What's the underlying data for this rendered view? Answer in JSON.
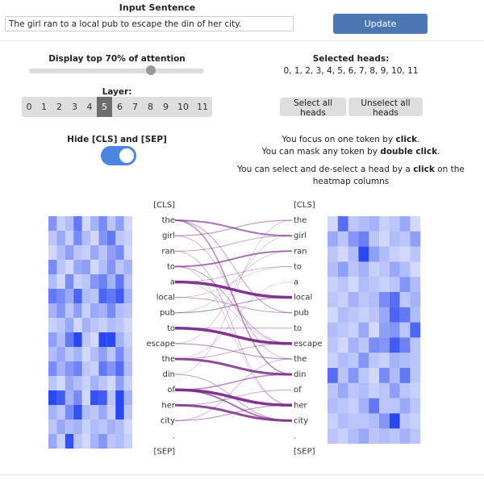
{
  "input": {
    "title": "Input Sentence",
    "value": "The girl ran to a local pub to escape the din of her city.",
    "update_label": "Update"
  },
  "attention": {
    "label": "Display top 70% of attention",
    "top_percent": 70
  },
  "selected_heads": {
    "label": "Selected heads:",
    "list": "0, 1, 2, 3, 4, 5, 6, 7, 8, 9, 10, 11"
  },
  "layer": {
    "label": "Layer:",
    "options": [
      "0",
      "1",
      "2",
      "3",
      "4",
      "5",
      "6",
      "7",
      "8",
      "9",
      "10",
      "11"
    ],
    "selected": 5
  },
  "buttons": {
    "select_all": "Select all heads",
    "unselect_all": "Unselect all heads"
  },
  "hide_special": {
    "label": "Hide [CLS] and [SEP]",
    "enabled": true
  },
  "instructions": {
    "line1_pre": "You focus on one token by ",
    "line1_bold": "click",
    "line1_post": ".",
    "line2_pre": "You can mask any token by ",
    "line2_bold": "double click",
    "line2_post": ".",
    "line3_pre": "You can select and de-select a head by a ",
    "line3_bold": "click",
    "line3_post": " on the heatmap columns"
  },
  "tokens": [
    "[CLS]",
    "the",
    "girl",
    "ran",
    "to",
    "a",
    "local",
    "pub",
    "to",
    "escape",
    "the",
    "din",
    "of",
    "her",
    "city",
    ".",
    "[SEP]"
  ],
  "colors": {
    "accent": "#4a78b5",
    "edge": "#7b2a8a",
    "heat": "#1f3ef0"
  },
  "heatmap_left": [
    [
      0.55,
      0.25,
      0.35,
      0.7,
      0.2,
      0.4,
      0.6,
      0.3,
      0.5,
      0.2
    ],
    [
      0.3,
      0.45,
      0.25,
      0.6,
      0.35,
      0.2,
      0.55,
      0.7,
      0.3,
      0.25
    ],
    [
      0.2,
      0.35,
      0.5,
      0.3,
      0.25,
      0.45,
      0.3,
      0.5,
      0.6,
      0.2
    ],
    [
      0.6,
      0.3,
      0.2,
      0.45,
      0.5,
      0.2,
      0.35,
      0.55,
      0.3,
      0.4
    ],
    [
      0.35,
      0.2,
      0.6,
      0.25,
      0.3,
      0.55,
      0.65,
      0.4,
      0.7,
      0.3
    ],
    [
      0.7,
      0.6,
      0.45,
      0.8,
      0.35,
      0.3,
      0.8,
      0.7,
      0.85,
      0.4
    ],
    [
      0.4,
      0.55,
      0.3,
      0.5,
      0.25,
      0.45,
      0.4,
      0.6,
      0.35,
      0.3
    ],
    [
      0.25,
      0.3,
      0.45,
      0.2,
      0.4,
      0.3,
      0.25,
      0.35,
      0.3,
      0.2
    ],
    [
      0.5,
      0.35,
      0.7,
      0.95,
      0.3,
      0.2,
      0.95,
      0.95,
      0.4,
      0.25
    ],
    [
      0.35,
      0.45,
      0.3,
      0.4,
      0.2,
      0.35,
      0.5,
      0.3,
      0.6,
      0.3
    ],
    [
      0.6,
      0.4,
      0.55,
      0.65,
      0.3,
      0.25,
      0.7,
      0.55,
      0.75,
      0.35
    ],
    [
      0.3,
      0.2,
      0.45,
      0.35,
      0.25,
      0.4,
      0.3,
      0.2,
      0.5,
      0.25
    ],
    [
      0.95,
      0.85,
      0.4,
      0.6,
      0.2,
      0.9,
      0.85,
      0.3,
      0.95,
      0.4
    ],
    [
      0.4,
      0.3,
      0.6,
      0.9,
      0.35,
      0.3,
      0.45,
      0.25,
      0.95,
      0.3
    ],
    [
      0.3,
      0.45,
      0.35,
      0.4,
      0.25,
      0.35,
      0.3,
      0.4,
      0.35,
      0.2
    ],
    [
      0.45,
      0.25,
      0.9,
      0.3,
      0.2,
      0.4,
      0.55,
      0.3,
      0.35,
      0.25
    ]
  ],
  "heatmap_right": [
    [
      0.2,
      0.75,
      0.3,
      0.35,
      0.4,
      0.25,
      0.3,
      0.45,
      0.2
    ],
    [
      0.45,
      0.3,
      0.55,
      0.65,
      0.3,
      0.2,
      0.35,
      0.3,
      0.5
    ],
    [
      0.3,
      0.2,
      0.35,
      0.95,
      0.5,
      0.35,
      0.25,
      0.2,
      0.3
    ],
    [
      0.35,
      0.5,
      0.3,
      0.4,
      0.25,
      0.3,
      0.45,
      0.35,
      0.2
    ],
    [
      0.25,
      0.3,
      0.2,
      0.35,
      0.3,
      0.25,
      0.3,
      0.55,
      0.35
    ],
    [
      0.3,
      0.25,
      0.4,
      0.3,
      0.35,
      0.6,
      0.75,
      0.3,
      0.4
    ],
    [
      0.2,
      0.35,
      0.3,
      0.25,
      0.3,
      0.45,
      0.8,
      0.7,
      0.35
    ],
    [
      0.35,
      0.3,
      0.25,
      0.45,
      0.2,
      0.5,
      0.55,
      0.3,
      0.8
    ],
    [
      0.3,
      0.2,
      0.4,
      0.3,
      0.6,
      0.55,
      0.85,
      0.65,
      0.3
    ],
    [
      0.25,
      0.35,
      0.3,
      0.55,
      0.3,
      0.25,
      0.4,
      0.35,
      0.3
    ],
    [
      0.75,
      0.3,
      0.55,
      0.3,
      0.2,
      0.6,
      0.35,
      0.7,
      0.3
    ],
    [
      0.3,
      0.45,
      0.3,
      0.35,
      0.25,
      0.3,
      0.5,
      0.3,
      0.25
    ],
    [
      0.35,
      0.3,
      0.25,
      0.4,
      0.7,
      0.3,
      0.3,
      0.45,
      0.3
    ],
    [
      0.25,
      0.35,
      0.3,
      0.3,
      0.35,
      0.55,
      0.95,
      0.3,
      0.25
    ],
    [
      0.3,
      0.25,
      0.35,
      0.45,
      0.3,
      0.35,
      0.3,
      0.4,
      0.3
    ]
  ],
  "edges": [
    {
      "from": 1,
      "to": 2,
      "w": 2.0
    },
    {
      "from": 1,
      "to": 11,
      "w": 1.5
    },
    {
      "from": 1,
      "to": 7,
      "w": 1.0
    },
    {
      "from": 2,
      "to": 1,
      "w": 1.2
    },
    {
      "from": 2,
      "to": 10,
      "w": 0.8
    },
    {
      "from": 3,
      "to": 2,
      "w": 1.0
    },
    {
      "from": 3,
      "to": 13,
      "w": 0.8
    },
    {
      "from": 4,
      "to": 3,
      "w": 2.0
    },
    {
      "from": 4,
      "to": 9,
      "w": 1.0
    },
    {
      "from": 4,
      "to": 13,
      "w": 0.6
    },
    {
      "from": 5,
      "to": 6,
      "w": 3.5
    },
    {
      "from": 5,
      "to": 4,
      "w": 0.8
    },
    {
      "from": 5,
      "to": 9,
      "w": 0.6
    },
    {
      "from": 6,
      "to": 7,
      "w": 1.0
    },
    {
      "from": 6,
      "to": 4,
      "w": 0.6
    },
    {
      "from": 7,
      "to": 6,
      "w": 1.2
    },
    {
      "from": 7,
      "to": 3,
      "w": 0.6
    },
    {
      "from": 8,
      "to": 9,
      "w": 3.5
    },
    {
      "from": 8,
      "to": 8,
      "w": 1.0
    },
    {
      "from": 9,
      "to": 10,
      "w": 1.2
    },
    {
      "from": 9,
      "to": 2,
      "w": 0.6
    },
    {
      "from": 10,
      "to": 11,
      "w": 3.0
    },
    {
      "from": 10,
      "to": 9,
      "w": 1.0
    },
    {
      "from": 10,
      "to": 5,
      "w": 0.6
    },
    {
      "from": 11,
      "to": 14,
      "w": 1.0
    },
    {
      "from": 11,
      "to": 1,
      "w": 0.6
    },
    {
      "from": 12,
      "to": 13,
      "w": 3.5
    },
    {
      "from": 12,
      "to": 11,
      "w": 1.5
    },
    {
      "from": 12,
      "to": 14,
      "w": 2.0
    },
    {
      "from": 13,
      "to": 14,
      "w": 3.0
    },
    {
      "from": 13,
      "to": 12,
      "w": 1.0
    },
    {
      "from": 14,
      "to": 13,
      "w": 1.2
    },
    {
      "from": 14,
      "to": 10,
      "w": 0.8
    }
  ]
}
